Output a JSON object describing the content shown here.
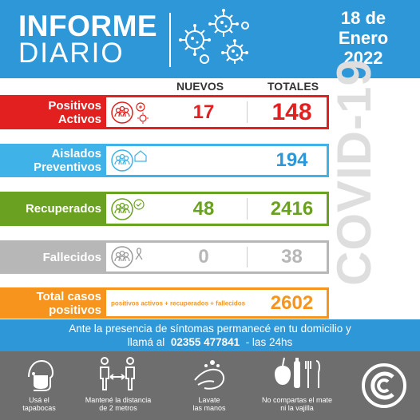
{
  "header": {
    "title_line1": "INFORME",
    "title_line2": "DIARIO",
    "date_line1": "18 de",
    "date_line2": "Enero",
    "date_line3": "2022",
    "bg_color": "#2e97d8"
  },
  "columns": {
    "nuevos": "NUEVOS",
    "totales": "TOTALES"
  },
  "side_text": "COVID-19",
  "rows": [
    {
      "label_line1": "Positivos",
      "label_line2": "Activos",
      "nuevos": "17",
      "totales": "148",
      "color": "#e2201f",
      "icon": "group-virus-icon"
    },
    {
      "label_line1": "Aislados",
      "label_line2": "Preventivos",
      "nuevos": "",
      "totales": "194",
      "color": "#3fb3e8",
      "icon": "group-house-icon"
    },
    {
      "label_line1": "Recuperados",
      "label_line2": "",
      "nuevos": "48",
      "totales": "2416",
      "color": "#6aa121",
      "icon": "group-check-icon"
    },
    {
      "label_line1": "Fallecidos",
      "label_line2": "",
      "nuevos": "0",
      "totales": "38",
      "color": "#b7b7b7",
      "icon": "group-ribbon-icon"
    },
    {
      "label_line1": "Total casos",
      "label_line2": "positivos",
      "note": "positivos activos + recuperados + fallecidos",
      "totales": "2602",
      "color": "#f7941d"
    }
  ],
  "band": {
    "line1": "Ante la presencia de síntomas permanecé en tu domicilio y",
    "line2_prefix": "llamá al",
    "phone": "02355 477841",
    "line2_suffix": "- las 24hs"
  },
  "tips": [
    {
      "line1": "Usá el",
      "line2": "tapabocas",
      "icon": "face-mask-icon"
    },
    {
      "line1": "Mantené la distancia",
      "line2": "de 2 metros",
      "icon": "distance-icon"
    },
    {
      "line1": "Lavate",
      "line2": "las manos",
      "icon": "hand-wash-icon"
    },
    {
      "line1": "No compartas el mate",
      "line2": "ni la vajilla",
      "icon": "no-sharing-icon"
    }
  ]
}
